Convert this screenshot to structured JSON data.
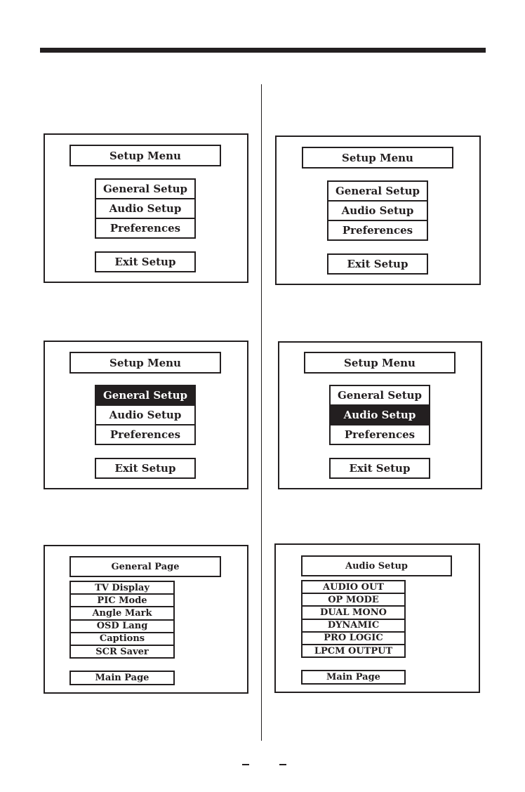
{
  "colors": {
    "ink": "#231f20",
    "paper": "#ffffff"
  },
  "panels": [
    {
      "title": "Setup Menu",
      "items": [
        "General Setup",
        "Audio Setup",
        "Preferences"
      ],
      "footer": "Exit Setup",
      "highlight": null
    },
    {
      "title": "Setup Menu",
      "items": [
        "General Setup",
        "Audio Setup",
        "Preferences"
      ],
      "footer": "Exit Setup",
      "highlight": null
    },
    {
      "title": "Setup Menu",
      "items": [
        "General Setup",
        "Audio Setup",
        "Preferences"
      ],
      "footer": "Exit Setup",
      "highlight": 0
    },
    {
      "title": "Setup Menu",
      "items": [
        "General Setup",
        "Audio Setup",
        "Preferences"
      ],
      "footer": "Exit Setup",
      "highlight": 1
    },
    {
      "title": "General Page",
      "items": [
        "TV Display",
        "PIC Mode",
        "Angle Mark",
        "OSD Lang",
        "Captions",
        "SCR Saver"
      ],
      "footer": "Main Page",
      "highlight": null
    },
    {
      "title": "Audio Setup",
      "items": [
        "AUDIO OUT",
        "OP MODE",
        "DUAL MONO",
        "DYNAMIC",
        "PRO LOGIC",
        "LPCM OUTPUT"
      ],
      "footer": "Main Page",
      "highlight": null
    }
  ]
}
